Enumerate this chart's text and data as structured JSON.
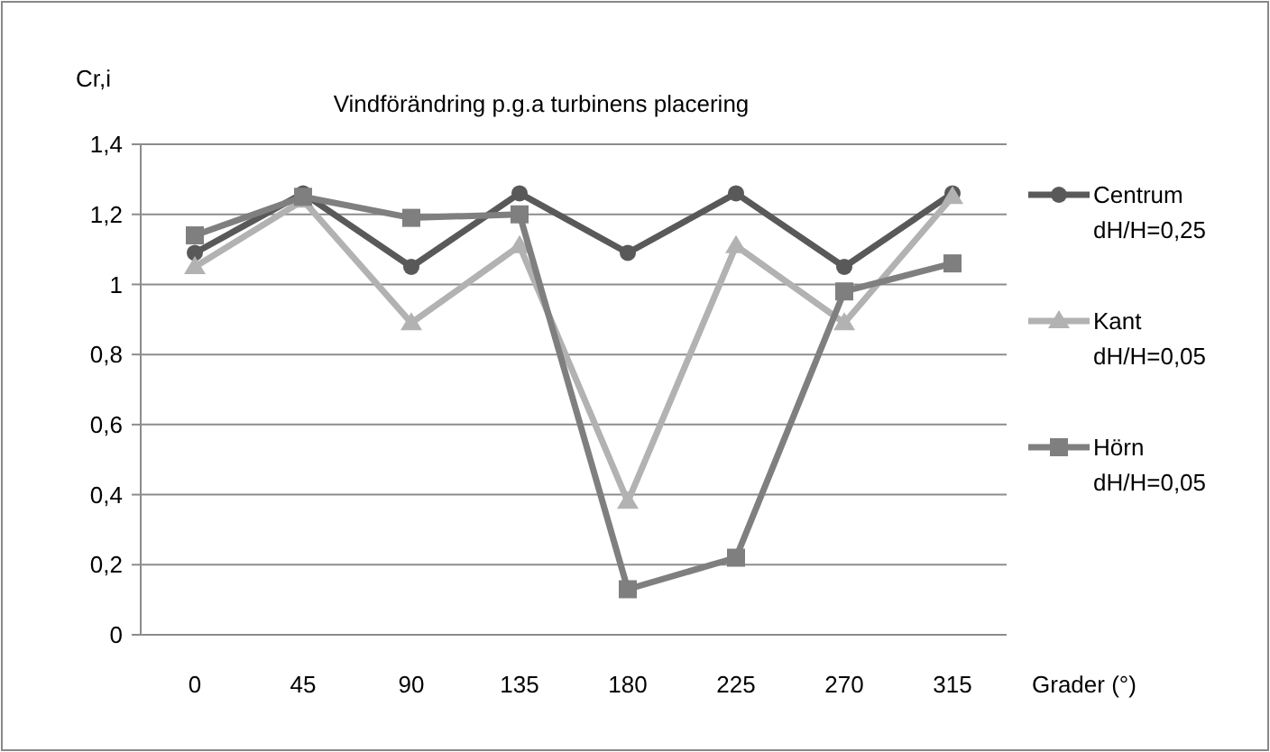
{
  "chart_data": {
    "type": "line",
    "title": "Vindförändring p.g.a turbinens placering",
    "ylabel": "Cr,i",
    "xlabel": "Grader (°)",
    "categories": [
      "0",
      "45",
      "90",
      "135",
      "180",
      "225",
      "270",
      "315"
    ],
    "series": [
      {
        "name": "Centrum\ndH/H=0,25",
        "color": "#595959",
        "marker": "circle",
        "values": [
          1.09,
          1.26,
          1.05,
          1.26,
          1.09,
          1.26,
          1.05,
          1.26
        ]
      },
      {
        "name": "Kant\ndH/H=0,05",
        "color": "#b2b2b2",
        "marker": "triangle",
        "values": [
          1.05,
          1.24,
          0.89,
          1.11,
          0.38,
          1.11,
          0.89,
          1.25
        ]
      },
      {
        "name": "Hörn\ndH/H=0,05",
        "color": "#7f7f7f",
        "marker": "square",
        "values": [
          1.14,
          1.25,
          1.19,
          1.2,
          0.13,
          0.22,
          0.98,
          1.06
        ]
      }
    ],
    "ylim": [
      0,
      1.4
    ],
    "yticks": [
      0,
      {
        "value": 0.2,
        "label": "0,2"
      },
      {
        "value": 0.4,
        "label": "0,4"
      },
      {
        "value": 0.6,
        "label": "0,6"
      },
      {
        "value": 0.8,
        "label": "0,8"
      },
      1,
      {
        "value": 1.2,
        "label": "1,2"
      },
      {
        "value": 1.4,
        "label": "1,4"
      }
    ],
    "grid": "y",
    "legend": "right"
  }
}
